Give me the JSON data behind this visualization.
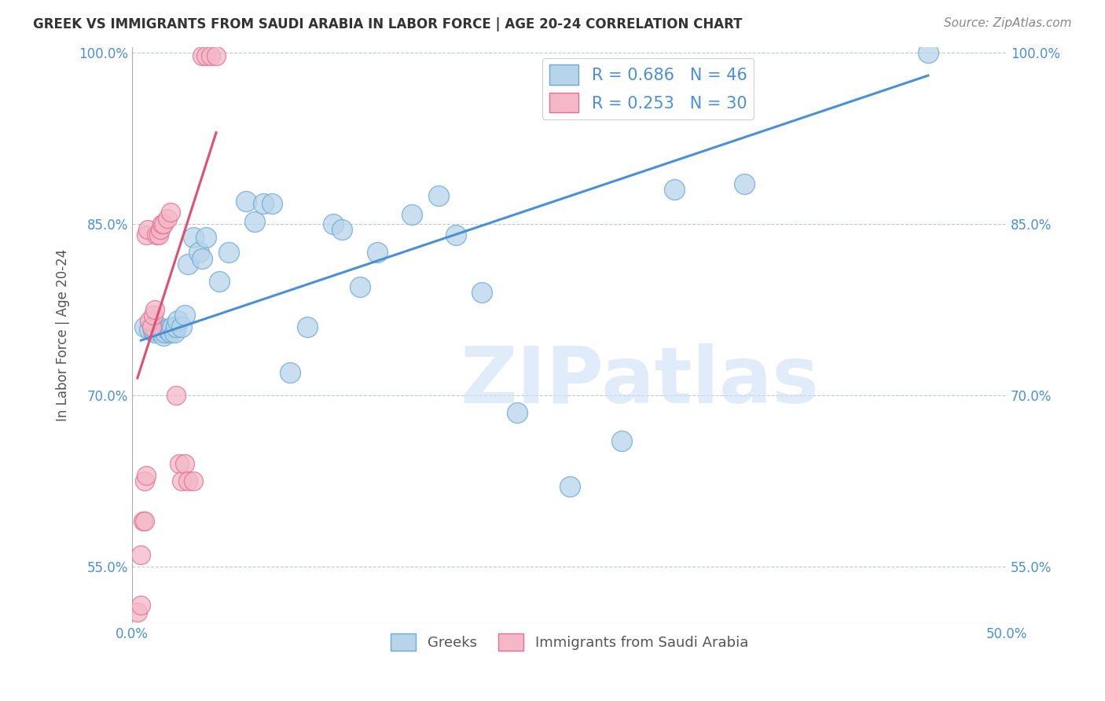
{
  "title": "GREEK VS IMMIGRANTS FROM SAUDI ARABIA IN LABOR FORCE | AGE 20-24 CORRELATION CHART",
  "source": "Source: ZipAtlas.com",
  "ylabel": "In Labor Force | Age 20-24",
  "xlim": [
    0.0,
    0.5
  ],
  "ylim": [
    0.5,
    1.005
  ],
  "xticks": [
    0.0,
    0.1,
    0.2,
    0.3,
    0.4,
    0.5
  ],
  "xticklabels": [
    "0.0%",
    "",
    "",
    "",
    "",
    "50.0%"
  ],
  "yticks": [
    0.55,
    0.7,
    0.85,
    1.0
  ],
  "yticklabels": [
    "55.0%",
    "70.0%",
    "85.0%",
    "100.0%"
  ],
  "blue_R": 0.686,
  "blue_N": 46,
  "pink_R": 0.253,
  "pink_N": 30,
  "blue_color": "#b8d4ea",
  "blue_edge": "#6aaad4",
  "pink_color": "#f4b8c8",
  "pink_edge": "#e07090",
  "blue_line_color": "#4a90d9",
  "pink_line_color": "#e05070",
  "watermark_text": "ZIPatlas",
  "watermark_color": "#cce0f5",
  "blue_x": [
    0.007,
    0.01,
    0.012,
    0.013,
    0.014,
    0.015,
    0.016,
    0.017,
    0.018,
    0.019,
    0.02,
    0.021,
    0.022,
    0.023,
    0.024,
    0.025,
    0.026,
    0.028,
    0.03,
    0.032,
    0.035,
    0.038,
    0.04,
    0.042,
    0.05,
    0.055,
    0.065,
    0.07,
    0.075,
    0.08,
    0.09,
    0.1,
    0.115,
    0.12,
    0.13,
    0.14,
    0.16,
    0.175,
    0.185,
    0.2,
    0.22,
    0.25,
    0.28,
    0.31,
    0.35,
    0.455
  ],
  "blue_y": [
    0.76,
    0.758,
    0.756,
    0.755,
    0.757,
    0.76,
    0.758,
    0.755,
    0.752,
    0.755,
    0.758,
    0.756,
    0.755,
    0.76,
    0.755,
    0.76,
    0.765,
    0.76,
    0.77,
    0.815,
    0.838,
    0.825,
    0.82,
    0.838,
    0.8,
    0.825,
    0.87,
    0.852,
    0.868,
    0.868,
    0.72,
    0.76,
    0.85,
    0.845,
    0.795,
    0.825,
    0.858,
    0.875,
    0.84,
    0.79,
    0.685,
    0.62,
    0.66,
    0.88,
    0.885,
    1.0
  ],
  "pink_x": [
    0.003,
    0.005,
    0.005,
    0.006,
    0.007,
    0.007,
    0.008,
    0.008,
    0.009,
    0.01,
    0.011,
    0.012,
    0.013,
    0.014,
    0.015,
    0.016,
    0.017,
    0.018,
    0.02,
    0.022,
    0.025,
    0.027,
    0.028,
    0.03,
    0.032,
    0.035,
    0.04,
    0.042,
    0.045,
    0.048
  ],
  "pink_y": [
    0.51,
    0.516,
    0.56,
    0.59,
    0.59,
    0.625,
    0.63,
    0.84,
    0.845,
    0.765,
    0.76,
    0.77,
    0.775,
    0.84,
    0.84,
    0.845,
    0.85,
    0.85,
    0.855,
    0.86,
    0.7,
    0.64,
    0.625,
    0.64,
    0.625,
    0.625,
    0.997,
    0.997,
    0.997,
    0.997
  ],
  "blue_line_x": [
    0.005,
    0.455
  ],
  "blue_line_y": [
    0.748,
    0.98
  ],
  "pink_line_x": [
    0.003,
    0.048
  ],
  "pink_line_y": [
    0.715,
    0.93
  ]
}
